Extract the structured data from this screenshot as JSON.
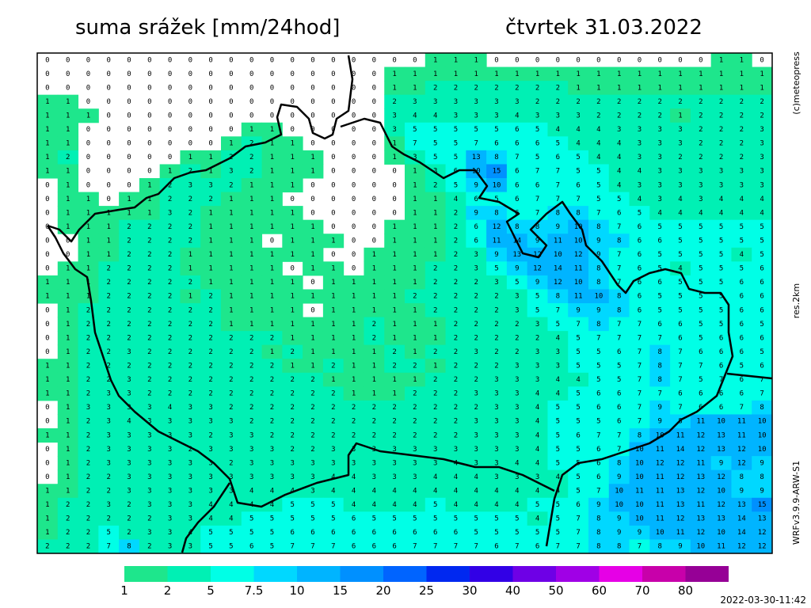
{
  "header": {
    "title": "suma srážek [mm/24hod]",
    "date": "čtvrtek 31.03.2022"
  },
  "side_labels": [
    "(c)meteopress",
    "res.2km",
    "WRFv3.9.9-ARW-S1"
  ],
  "timestamp": "2022-03-30-11:42",
  "legend": {
    "thresholds": [
      1,
      2,
      5,
      7.5,
      10,
      15,
      20,
      25,
      30,
      40,
      50,
      60,
      70,
      80
    ],
    "colors": [
      "#1ee68c",
      "#00f0b4",
      "#00ffe6",
      "#00d8ff",
      "#00b4ff",
      "#0090ff",
      "#0064ff",
      "#0028f0",
      "#3200e6",
      "#6e00e6",
      "#a000e6",
      "#e600e6",
      "#c800aa",
      "#960096"
    ]
  },
  "grid": {
    "rows": [
      [
        0,
        0,
        0,
        0,
        0,
        0,
        0,
        0,
        0,
        0,
        0,
        0,
        0,
        0,
        0,
        0,
        0,
        0,
        0,
        1,
        1,
        1,
        0,
        0,
        0,
        0,
        0,
        0,
        0,
        0,
        0,
        0,
        0,
        1,
        1,
        0
      ],
      [
        0,
        0,
        0,
        0,
        0,
        0,
        0,
        0,
        0,
        0,
        0,
        0,
        0,
        0,
        0,
        0,
        0,
        1,
        1,
        1,
        1,
        1,
        1,
        1,
        1,
        1,
        1,
        1,
        1,
        1,
        1,
        1,
        1,
        1,
        1,
        1
      ],
      [
        0,
        0,
        0,
        0,
        0,
        0,
        0,
        0,
        0,
        0,
        0,
        0,
        0,
        0,
        0,
        0,
        0,
        1,
        1,
        2,
        2,
        2,
        2,
        2,
        2,
        2,
        1,
        1,
        1,
        1,
        1,
        1,
        1,
        1,
        1,
        1
      ],
      [
        1,
        1,
        0,
        0,
        0,
        0,
        0,
        0,
        0,
        0,
        0,
        0,
        0,
        0,
        0,
        0,
        0,
        2,
        3,
        3,
        3,
        3,
        3,
        3,
        2,
        2,
        2,
        2,
        2,
        2,
        2,
        2,
        2,
        2,
        2,
        2
      ],
      [
        1,
        1,
        1,
        0,
        0,
        0,
        0,
        0,
        0,
        0,
        0,
        0,
        0,
        0,
        0,
        0,
        0,
        3,
        4,
        4,
        3,
        3,
        3,
        4,
        3,
        3,
        3,
        2,
        2,
        2,
        2,
        1,
        2,
        2,
        2,
        2
      ],
      [
        1,
        1,
        0,
        0,
        0,
        0,
        0,
        0,
        0,
        0,
        1,
        1,
        0,
        0,
        0,
        0,
        0,
        3,
        5,
        5,
        5,
        5,
        5,
        6,
        5,
        4,
        4,
        4,
        3,
        3,
        3,
        3,
        2,
        2,
        2,
        3
      ],
      [
        1,
        1,
        0,
        0,
        0,
        0,
        0,
        0,
        0,
        1,
        2,
        1,
        1,
        0,
        0,
        0,
        0,
        1,
        7,
        5,
        5,
        7,
        6,
        6,
        6,
        5,
        4,
        4,
        4,
        3,
        3,
        3,
        2,
        2,
        2,
        3
      ],
      [
        1,
        2,
        0,
        0,
        0,
        0,
        0,
        1,
        1,
        2,
        2,
        1,
        1,
        1,
        0,
        0,
        0,
        1,
        3,
        5,
        5,
        13,
        8,
        7,
        5,
        6,
        5,
        4,
        4,
        3,
        3,
        2,
        2,
        2,
        2,
        3
      ],
      [
        1,
        1,
        0,
        0,
        0,
        0,
        1,
        2,
        1,
        3,
        2,
        1,
        1,
        1,
        0,
        0,
        0,
        0,
        1,
        3,
        6,
        10,
        15,
        6,
        7,
        7,
        5,
        5,
        4,
        4,
        3,
        3,
        3,
        3,
        3,
        3
      ],
      [
        0,
        1,
        0,
        0,
        0,
        1,
        2,
        3,
        3,
        2,
        1,
        1,
        1,
        0,
        0,
        0,
        0,
        0,
        1,
        2,
        5,
        9,
        10,
        6,
        6,
        7,
        6,
        5,
        4,
        3,
        3,
        3,
        3,
        3,
        3,
        3
      ],
      [
        0,
        1,
        1,
        0,
        1,
        1,
        2,
        2,
        2,
        1,
        1,
        1,
        0,
        0,
        0,
        0,
        0,
        0,
        1,
        1,
        4,
        6,
        5,
        6,
        7,
        7,
        7,
        5,
        5,
        4,
        3,
        4,
        3,
        4,
        4,
        4
      ],
      [
        0,
        1,
        1,
        1,
        1,
        1,
        3,
        2,
        1,
        1,
        1,
        1,
        1,
        0,
        0,
        0,
        0,
        0,
        1,
        1,
        2,
        9,
        8,
        6,
        7,
        8,
        8,
        7,
        6,
        5,
        4,
        4,
        4,
        4,
        4,
        4
      ],
      [
        0,
        1,
        1,
        1,
        2,
        2,
        2,
        2,
        1,
        1,
        1,
        1,
        1,
        1,
        0,
        0,
        0,
        1,
        1,
        1,
        2,
        6,
        12,
        8,
        8,
        9,
        10,
        8,
        7,
        6,
        5,
        5,
        5,
        5,
        5,
        5
      ],
      [
        0,
        0,
        1,
        1,
        2,
        2,
        2,
        2,
        1,
        1,
        1,
        0,
        1,
        1,
        1,
        0,
        0,
        1,
        1,
        1,
        2,
        6,
        11,
        14,
        9,
        11,
        10,
        9,
        8,
        6,
        6,
        5,
        5,
        5,
        5,
        5
      ],
      [
        0,
        0,
        1,
        1,
        2,
        2,
        2,
        1,
        1,
        1,
        1,
        1,
        1,
        1,
        0,
        0,
        1,
        1,
        1,
        1,
        2,
        3,
        9,
        13,
        12,
        10,
        12,
        9,
        7,
        6,
        5,
        5,
        5,
        5,
        4,
        5
      ],
      [
        0,
        1,
        1,
        2,
        2,
        2,
        2,
        1,
        1,
        1,
        1,
        1,
        0,
        1,
        1,
        0,
        1,
        1,
        1,
        2,
        2,
        3,
        5,
        9,
        12,
        14,
        11,
        8,
        7,
        6,
        5,
        4,
        5,
        5,
        5,
        6
      ],
      [
        1,
        1,
        1,
        2,
        2,
        2,
        2,
        2,
        1,
        1,
        1,
        1,
        1,
        0,
        1,
        1,
        1,
        1,
        1,
        2,
        2,
        2,
        3,
        5,
        9,
        12,
        10,
        8,
        7,
        6,
        6,
        5,
        5,
        5,
        6,
        6
      ],
      [
        1,
        1,
        1,
        2,
        2,
        2,
        2,
        1,
        2,
        1,
        1,
        1,
        1,
        1,
        1,
        1,
        1,
        1,
        2,
        2,
        2,
        2,
        2,
        3,
        5,
        8,
        11,
        10,
        8,
        6,
        5,
        5,
        5,
        5,
        6,
        6
      ],
      [
        0,
        1,
        2,
        2,
        2,
        2,
        2,
        2,
        2,
        1,
        1,
        1,
        1,
        0,
        1,
        1,
        1,
        1,
        1,
        2,
        2,
        2,
        2,
        3,
        5,
        7,
        9,
        9,
        8,
        6,
        5,
        5,
        5,
        5,
        6,
        6
      ],
      [
        0,
        1,
        2,
        2,
        2,
        2,
        2,
        2,
        2,
        1,
        1,
        1,
        1,
        1,
        1,
        1,
        2,
        1,
        1,
        1,
        2,
        2,
        2,
        2,
        3,
        5,
        7,
        8,
        7,
        7,
        6,
        6,
        5,
        5,
        6,
        5
      ],
      [
        0,
        1,
        2,
        2,
        2,
        2,
        2,
        2,
        2,
        2,
        2,
        2,
        1,
        1,
        1,
        1,
        2,
        1,
        1,
        1,
        2,
        2,
        2,
        2,
        2,
        4,
        5,
        7,
        7,
        7,
        7,
        6,
        5,
        6,
        6,
        6
      ],
      [
        0,
        1,
        2,
        2,
        3,
        2,
        2,
        2,
        2,
        2,
        2,
        1,
        2,
        1,
        1,
        1,
        1,
        2,
        1,
        2,
        2,
        3,
        2,
        2,
        3,
        3,
        5,
        5,
        6,
        7,
        8,
        7,
        6,
        6,
        6,
        5
      ],
      [
        1,
        1,
        2,
        2,
        2,
        2,
        2,
        2,
        2,
        2,
        2,
        2,
        1,
        1,
        2,
        1,
        1,
        2,
        2,
        1,
        2,
        2,
        2,
        3,
        3,
        3,
        5,
        5,
        5,
        7,
        8,
        7,
        7,
        6,
        5,
        6
      ],
      [
        1,
        1,
        2,
        2,
        3,
        2,
        2,
        2,
        2,
        2,
        2,
        2,
        2,
        2,
        1,
        1,
        1,
        1,
        1,
        2,
        2,
        2,
        3,
        3,
        3,
        4,
        4,
        5,
        5,
        7,
        8,
        7,
        5,
        7,
        6,
        7
      ],
      [
        1,
        1,
        2,
        3,
        3,
        2,
        2,
        2,
        2,
        2,
        2,
        2,
        2,
        2,
        2,
        1,
        1,
        1,
        2,
        2,
        2,
        3,
        3,
        3,
        4,
        4,
        5,
        6,
        6,
        7,
        7,
        6,
        6,
        6,
        6,
        7
      ],
      [
        0,
        1,
        3,
        3,
        3,
        3,
        4,
        3,
        3,
        2,
        2,
        2,
        2,
        2,
        2,
        2,
        2,
        2,
        2,
        2,
        2,
        2,
        3,
        3,
        4,
        5,
        5,
        6,
        6,
        7,
        9,
        7,
        6,
        6,
        7,
        8
      ],
      [
        0,
        1,
        2,
        3,
        4,
        3,
        3,
        3,
        3,
        3,
        2,
        2,
        2,
        2,
        2,
        2,
        2,
        2,
        2,
        2,
        2,
        3,
        3,
        3,
        4,
        5,
        5,
        5,
        6,
        7,
        9,
        8,
        11,
        10,
        11,
        10
      ],
      [
        1,
        1,
        2,
        3,
        3,
        3,
        3,
        3,
        2,
        3,
        3,
        2,
        2,
        2,
        2,
        2,
        2,
        2,
        2,
        2,
        2,
        3,
        3,
        3,
        4,
        5,
        6,
        7,
        7,
        8,
        10,
        11,
        12,
        13,
        11,
        10
      ],
      [
        0,
        1,
        2,
        3,
        3,
        3,
        3,
        2,
        3,
        3,
        3,
        3,
        2,
        2,
        3,
        3,
        3,
        3,
        3,
        3,
        3,
        3,
        3,
        3,
        4,
        5,
        5,
        6,
        7,
        10,
        11,
        14,
        12,
        13,
        12,
        10
      ],
      [
        0,
        1,
        2,
        3,
        3,
        3,
        3,
        3,
        3,
        2,
        3,
        3,
        3,
        3,
        3,
        3,
        3,
        3,
        3,
        3,
        4,
        3,
        3,
        4,
        4,
        5,
        5,
        6,
        8,
        10,
        12,
        12,
        11,
        9,
        12,
        9
      ],
      [
        0,
        1,
        2,
        2,
        3,
        3,
        3,
        3,
        3,
        3,
        3,
        3,
        3,
        3,
        4,
        4,
        3,
        3,
        3,
        4,
        4,
        4,
        3,
        3,
        3,
        4,
        5,
        6,
        9,
        10,
        11,
        12,
        13,
        12,
        8,
        8
      ],
      [
        1,
        1,
        2,
        2,
        3,
        3,
        3,
        3,
        3,
        3,
        4,
        4,
        4,
        3,
        4,
        4,
        4,
        4,
        4,
        4,
        4,
        4,
        4,
        4,
        4,
        4,
        5,
        7,
        10,
        11,
        11,
        13,
        12,
        10,
        9,
        9
      ],
      [
        1,
        2,
        2,
        3,
        2,
        3,
        3,
        3,
        4,
        4,
        4,
        4,
        5,
        5,
        5,
        4,
        4,
        4,
        4,
        5,
        4,
        4,
        4,
        4,
        5,
        5,
        6,
        9,
        10,
        10,
        11,
        13,
        11,
        12,
        13,
        15
      ],
      [
        1,
        2,
        2,
        2,
        2,
        2,
        3,
        3,
        4,
        4,
        5,
        5,
        5,
        5,
        5,
        6,
        5,
        5,
        5,
        5,
        5,
        5,
        5,
        5,
        4,
        5,
        7,
        8,
        9,
        10,
        11,
        12,
        13,
        13,
        14,
        13
      ],
      [
        1,
        2,
        2,
        5,
        2,
        3,
        3,
        4,
        5,
        5,
        5,
        5,
        6,
        6,
        6,
        6,
        6,
        6,
        6,
        6,
        6,
        5,
        5,
        5,
        5,
        5,
        7,
        8,
        9,
        9,
        10,
        11,
        12,
        10,
        14,
        12
      ],
      [
        2,
        2,
        2,
        7,
        8,
        2,
        3,
        3,
        5,
        5,
        6,
        5,
        7,
        7,
        7,
        6,
        6,
        6,
        7,
        7,
        7,
        7,
        6,
        7,
        6,
        7,
        7,
        8,
        8,
        7,
        8,
        9,
        10,
        11,
        12,
        12
      ]
    ]
  }
}
